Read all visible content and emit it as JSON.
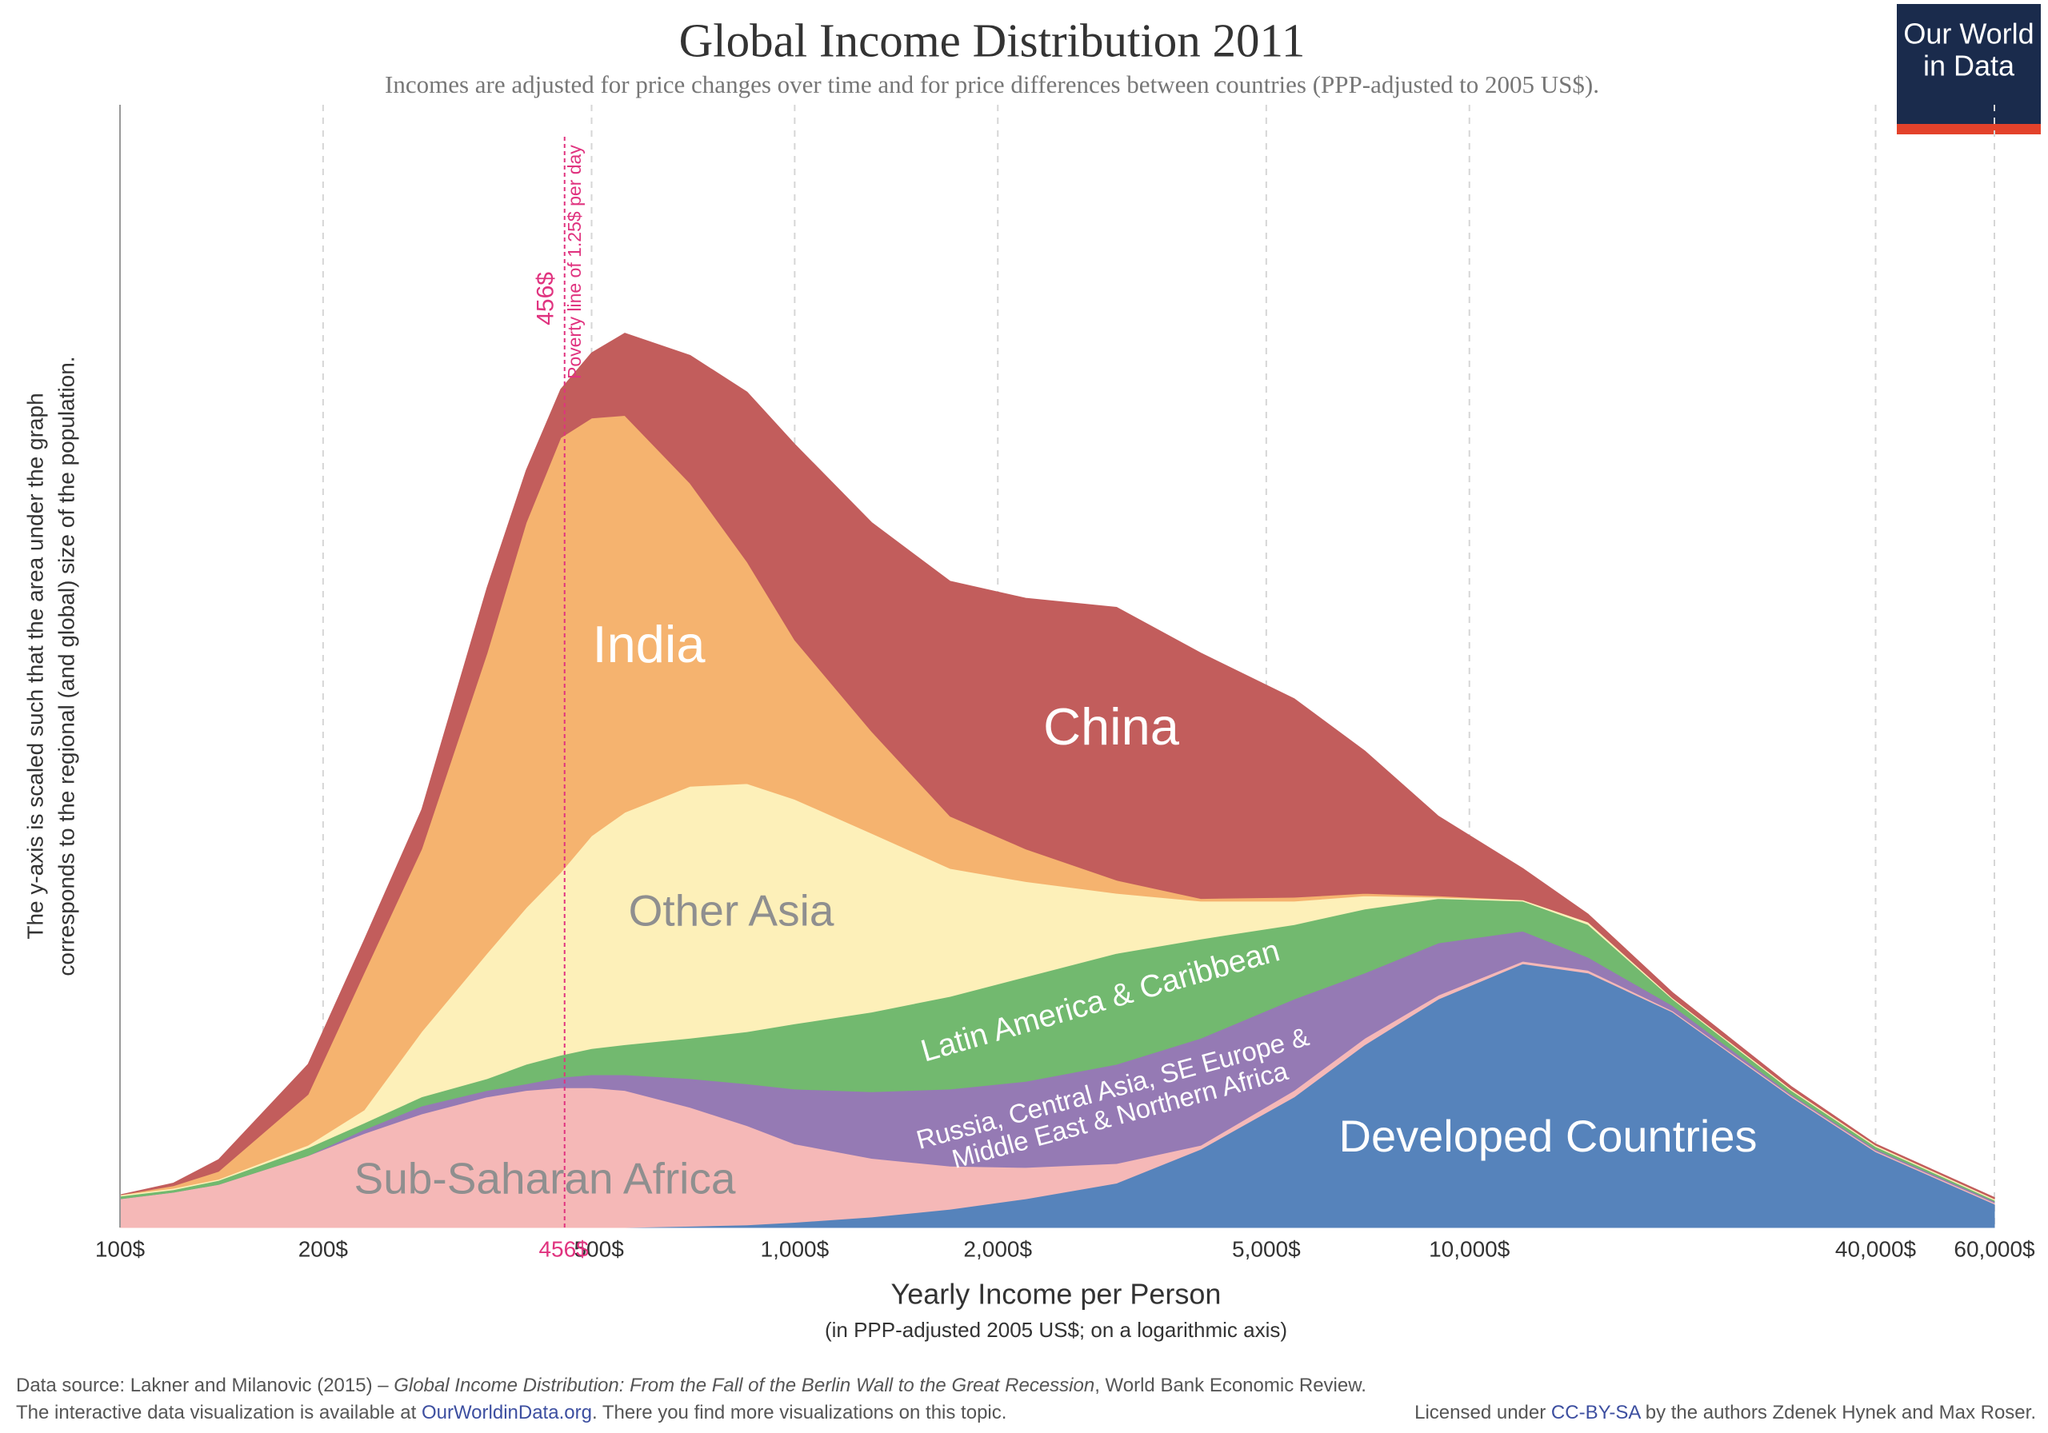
{
  "chart_data": {
    "type": "stacked-area",
    "title": "Global Income Distribution 2011",
    "subtitle": "Incomes are adjusted for price changes over time and for price differences between countries (PPP-adjusted to 2005 US$).",
    "y_label": [
      "The y-axis is scaled such that the area under the graph",
      "corresponds to the regional (and global) size of the population."
    ],
    "x_label": "Yearly Income per Person",
    "x_sublabel": "(in PPP-adjusted 2005 US$; on a logarithmic axis)",
    "log_x": true,
    "grid": true,
    "x": [
      100,
      120,
      140,
      190,
      230,
      280,
      350,
      400,
      450,
      500,
      560,
      700,
      850,
      1000,
      1300,
      1700,
      2200,
      3000,
      4000,
      5500,
      7000,
      9000,
      12000,
      15000,
      20000,
      30000,
      40000,
      60000
    ],
    "xlim": [
      100,
      60000
    ],
    "ylim": [
      0,
      86
    ],
    "xticks": [
      {
        "value": 100,
        "label": "100$"
      },
      {
        "value": 200,
        "label": "200$"
      },
      {
        "value": 500,
        "label": "500$"
      },
      {
        "value": 1000,
        "label": "1,000$"
      },
      {
        "value": 2000,
        "label": "2,000$"
      },
      {
        "value": 5000,
        "label": "5,000$"
      },
      {
        "value": 10000,
        "label": "10,000$"
      },
      {
        "value": 40000,
        "label": "40,000$"
      },
      {
        "value": 60000,
        "label": "60,000$"
      }
    ],
    "series": [
      {
        "name": "Developed Countries",
        "color": "#5683bb",
        "values": [
          0,
          0,
          0,
          0,
          0,
          0,
          0,
          0,
          0,
          0,
          0,
          0.1,
          0.2,
          0.4,
          0.8,
          1.4,
          2.2,
          3.4,
          6.0,
          10.0,
          14.0,
          17.5,
          20.2,
          19.5,
          16.5,
          10.0,
          5.8,
          1.8
        ]
      },
      {
        "name": "Sub-Saharan Africa",
        "color": "#f5b8b7",
        "values": [
          2.2,
          2.7,
          3.3,
          5.5,
          7.2,
          8.7,
          10.0,
          10.5,
          10.7,
          10.7,
          10.5,
          9.1,
          7.6,
          6.0,
          4.5,
          3.3,
          2.4,
          1.5,
          0.3,
          0.5,
          0.5,
          0.3,
          0.2,
          0.2,
          0.1,
          0.1,
          0.1,
          0.1
        ]
      },
      {
        "name": [
          "Russia, Central Asia, SE Europe &",
          "Middle East & Northern Africa"
        ],
        "color": "#957ab4",
        "values": [
          0,
          0,
          0,
          0,
          0.3,
          0.6,
          0.5,
          0.5,
          0.8,
          1.0,
          1.2,
          2.2,
          3.2,
          4.2,
          5.1,
          5.9,
          6.6,
          7.6,
          8.2,
          7.0,
          5.0,
          4.0,
          2.3,
          1.0,
          0.4,
          0.1,
          0.1,
          0.1
        ]
      },
      {
        "name": "Latin America & Caribbean",
        "color": "#72b96f",
        "values": [
          0.2,
          0.2,
          0.3,
          0.6,
          0.5,
          0.7,
          0.9,
          1.5,
          1.7,
          2.0,
          2.3,
          3.1,
          4.0,
          5.0,
          6.1,
          7.1,
          8.0,
          8.5,
          7.6,
          5.7,
          4.9,
          3.4,
          2.3,
          2.5,
          0.5,
          0.3,
          0.2,
          0.1
        ]
      },
      {
        "name": "Other Asia",
        "color": "#fdf0b9",
        "values": [
          0.1,
          0.1,
          0.1,
          0.2,
          1.0,
          5.0,
          9.6,
          12.0,
          14.0,
          16.3,
          17.8,
          19.3,
          19.0,
          17.2,
          13.7,
          9.8,
          7.3,
          4.6,
          2.9,
          1.8,
          1.0,
          0.1,
          0.1,
          0.2,
          0.1,
          0.1,
          0.1,
          0.1
        ]
      },
      {
        "name": "India",
        "color": "#f5b36f",
        "values": [
          0,
          0.2,
          0.6,
          3.9,
          10.5,
          14.0,
          23.0,
          29.5,
          33.3,
          32.0,
          30.4,
          23.2,
          17.0,
          12.2,
          7.8,
          4.0,
          2.5,
          1.0,
          0.2,
          0.3,
          0.2,
          0.1,
          0,
          0,
          0,
          0,
          0,
          0
        ]
      },
      {
        "name": "China",
        "color": "#c25d5c",
        "values": [
          0,
          0.2,
          0.9,
          2.3,
          2.5,
          3.0,
          5.0,
          4.0,
          3.7,
          5.0,
          6.3,
          9.8,
          13.0,
          15.0,
          16.0,
          18.0,
          19.2,
          20.9,
          18.8,
          15.2,
          10.9,
          6.1,
          2.4,
          0.6,
          0.4,
          0.2,
          0.1,
          0.1
        ]
      }
    ],
    "annotations": [
      {
        "x": 456,
        "label": "456$",
        "text": "Poverty line of 1.25$ per day",
        "color": "#e0337f"
      }
    ]
  },
  "logo": [
    "Our World",
    "in Data"
  ],
  "footer": {
    "source": [
      "Data source: Lakner and Milanovic (2015) – ",
      "Global Income Distribution: From the Fall of the Berlin Wall to the Great Recession",
      ", World Bank Economic Review."
    ],
    "note": [
      "The interactive data visualization is available at ",
      "OurWorldinData.org",
      ". There you find more visualizations on this topic."
    ],
    "license": [
      "Licensed under ",
      "CC-BY-SA",
      " by the authors Zdenek Hynek and Max Roser."
    ]
  }
}
